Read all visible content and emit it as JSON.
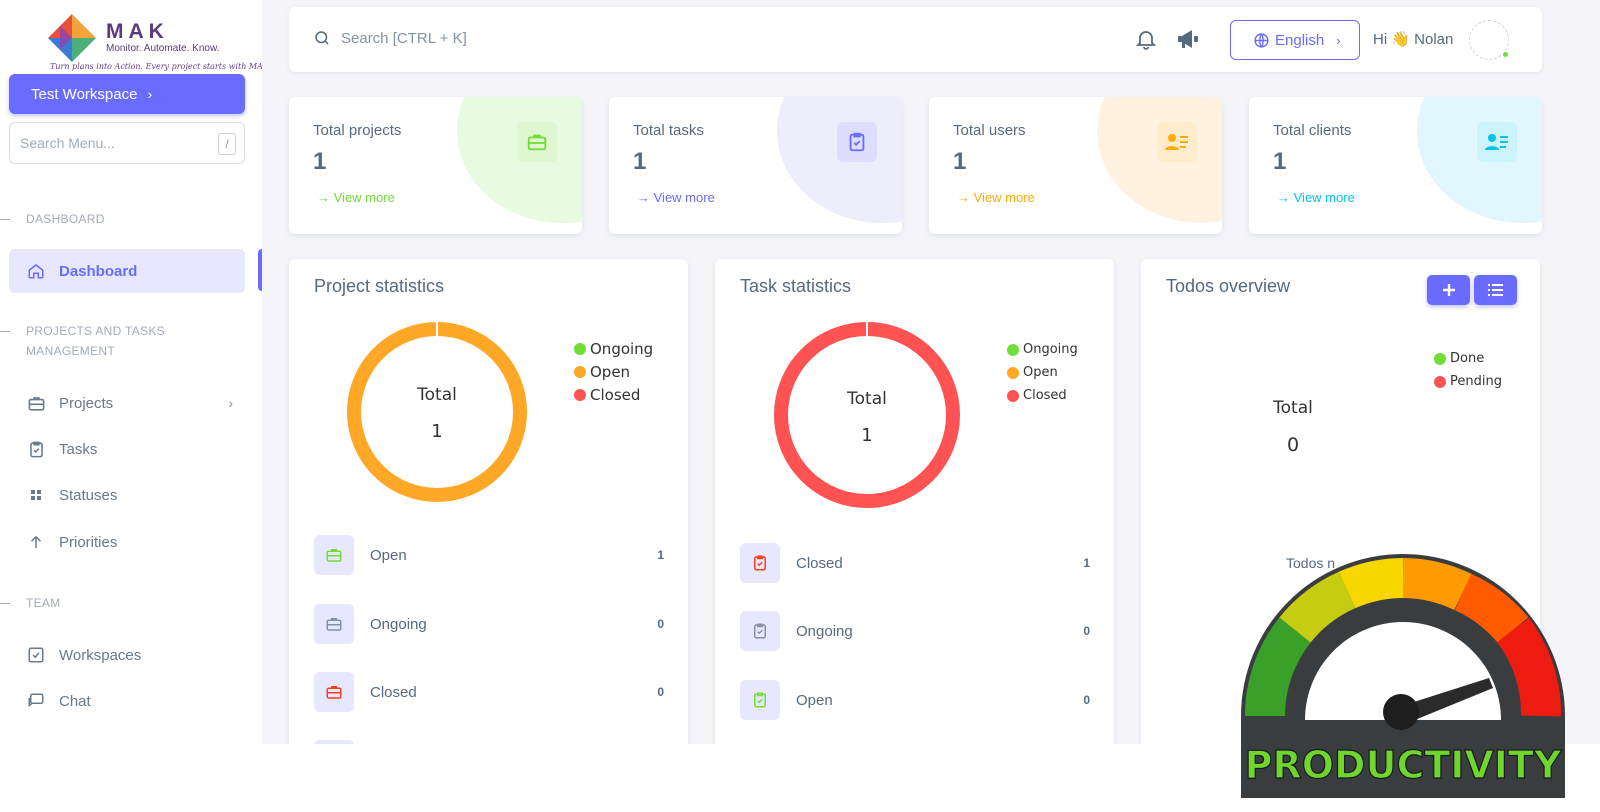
{
  "brand": {
    "name": "MAK",
    "tagline": "Monitor. Automate. Know.",
    "script": "Turn plans into Action. Every project starts with MAK"
  },
  "sidebar": {
    "workspace_button": "Test Workspace",
    "search_placeholder": "Search Menu...",
    "search_shortcut": "/",
    "sections": {
      "dashboard": "DASHBOARD",
      "projects": "PROJECTS AND TASKS",
      "projects_2": "MANAGEMENT",
      "team": "TEAM"
    },
    "items": [
      {
        "label": "Dashboard",
        "icon": "home-icon",
        "active": true
      },
      {
        "label": "Projects",
        "icon": "briefcase-icon"
      },
      {
        "label": "Tasks",
        "icon": "clipboard-check-icon"
      },
      {
        "label": "Statuses",
        "icon": "grid-icon"
      },
      {
        "label": "Priorities",
        "icon": "arrow-up-icon"
      },
      {
        "label": "Workspaces",
        "icon": "checkbox-icon"
      },
      {
        "label": "Chat",
        "icon": "chat-icon"
      }
    ]
  },
  "topbar": {
    "search_placeholder": "Search [CTRL + K]",
    "language": "English",
    "greeting": "Hi 👋 Nolan"
  },
  "stats": [
    {
      "label": "Total projects",
      "value": "1",
      "link": "View more",
      "color": "#71dd37",
      "bg": "#e8fadf"
    },
    {
      "label": "Total tasks",
      "value": "1",
      "link": "View more",
      "color": "#696cff",
      "bg": "#e7e7ff"
    },
    {
      "label": "Total users",
      "value": "1",
      "link": "View more",
      "color": "#ffab00",
      "bg": "#fff2d6"
    },
    {
      "label": "Total clients",
      "value": "1",
      "link": "View more",
      "color": "#03c3ec",
      "bg": "#d7f5fc"
    }
  ],
  "project_statistics": {
    "title": "Project statistics",
    "donut_label": "Total",
    "donut_value": "1",
    "legend": [
      {
        "name": "Ongoing",
        "color": "#71dd37"
      },
      {
        "name": "Open",
        "color": "#ffa726"
      },
      {
        "name": "Closed",
        "color": "#ff5252"
      }
    ],
    "rows": [
      {
        "label": "Open",
        "count": "1",
        "color": "#71dd37"
      },
      {
        "label": "Ongoing",
        "count": "0",
        "color": "#8592a3"
      },
      {
        "label": "Closed",
        "count": "0",
        "color": "#ff3e1d"
      }
    ]
  },
  "task_statistics": {
    "title": "Task statistics",
    "donut_label": "Total",
    "donut_value": "1",
    "legend": [
      {
        "name": "Ongoing",
        "color": "#71dd37"
      },
      {
        "name": "Open",
        "color": "#ffa726"
      },
      {
        "name": "Closed",
        "color": "#ff5252"
      }
    ],
    "rows": [
      {
        "label": "Closed",
        "count": "1",
        "color": "#ff3e1d"
      },
      {
        "label": "Ongoing",
        "count": "0",
        "color": "#8592a3"
      },
      {
        "label": "Open",
        "count": "0",
        "color": "#71dd37"
      }
    ]
  },
  "todos": {
    "title": "Todos overview",
    "total_label": "Total",
    "total_value": "0",
    "partial_text": "Todos n",
    "legend": [
      {
        "name": "Done",
        "color": "#71dd37"
      },
      {
        "name": "Pending",
        "color": "#ff5252"
      }
    ]
  },
  "gauge": {
    "text": "PRODUCTIVITY"
  },
  "chart_data": [
    {
      "type": "pie",
      "title": "Project statistics",
      "categories": [
        "Ongoing",
        "Open",
        "Closed"
      ],
      "values": [
        0,
        1,
        0
      ],
      "center_label": "Total",
      "center_value": 1,
      "legend": "top-right"
    },
    {
      "type": "pie",
      "title": "Task statistics",
      "categories": [
        "Ongoing",
        "Open",
        "Closed"
      ],
      "values": [
        0,
        0,
        1
      ],
      "center_label": "Total",
      "center_value": 1,
      "legend": "top-right"
    },
    {
      "type": "pie",
      "title": "Todos overview",
      "categories": [
        "Done",
        "Pending"
      ],
      "values": [
        0,
        0
      ],
      "center_label": "Total",
      "center_value": 0,
      "legend": "top-right"
    }
  ]
}
